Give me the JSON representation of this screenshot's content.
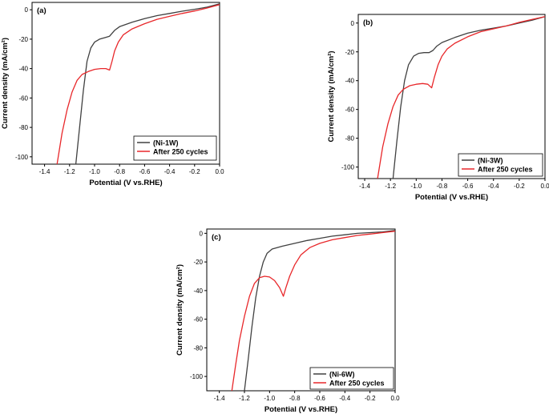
{
  "chart_data": [
    {
      "type": "line",
      "panel": "(a)",
      "xlabel": "Potential (V vs.RHE)",
      "ylabel": "Current density (mA/cm²)",
      "xlim": [
        -1.5,
        0.0
      ],
      "ylim": [
        -105,
        5
      ],
      "xticks": [
        -1.4,
        -1.2,
        -1.0,
        -0.8,
        -0.6,
        -0.4,
        -0.2,
        0.0
      ],
      "xtick_labels": [
        "-1.4",
        "-1.2",
        "-1.0",
        "-0.8",
        "-0.6",
        "-0.4",
        "-0.2",
        "0.0"
      ],
      "yticks": [
        0,
        -20,
        -40,
        -60,
        -80,
        -100
      ],
      "ytick_labels": [
        "0",
        "-20",
        "-40",
        "-60",
        "-80",
        "-100"
      ],
      "legend_position": "bottom-right",
      "series": [
        {
          "name": "(Ni-1W)",
          "color": "#404040",
          "points": [
            [
              -1.15,
              -105
            ],
            [
              -1.12,
              -80
            ],
            [
              -1.09,
              -55
            ],
            [
              -1.06,
              -35
            ],
            [
              -1.03,
              -26
            ],
            [
              -1.0,
              -22
            ],
            [
              -0.96,
              -20
            ],
            [
              -0.92,
              -19
            ],
            [
              -0.88,
              -18
            ],
            [
              -0.84,
              -14
            ],
            [
              -0.8,
              -11.5
            ],
            [
              -0.7,
              -8.5
            ],
            [
              -0.6,
              -6
            ],
            [
              -0.5,
              -4
            ],
            [
              -0.4,
              -2.5
            ],
            [
              -0.3,
              -1
            ],
            [
              -0.2,
              0.3
            ],
            [
              -0.1,
              1.8
            ],
            [
              0.0,
              4
            ]
          ]
        },
        {
          "name": "After 250 cycles",
          "color": "#e8272a",
          "points": [
            [
              -1.3,
              -105
            ],
            [
              -1.26,
              -84
            ],
            [
              -1.22,
              -68
            ],
            [
              -1.18,
              -56
            ],
            [
              -1.14,
              -48
            ],
            [
              -1.1,
              -44
            ],
            [
              -1.05,
              -42
            ],
            [
              -1.0,
              -40.5
            ],
            [
              -0.95,
              -40
            ],
            [
              -0.91,
              -40
            ],
            [
              -0.88,
              -41
            ],
            [
              -0.86,
              -35
            ],
            [
              -0.84,
              -28
            ],
            [
              -0.81,
              -22
            ],
            [
              -0.77,
              -17
            ],
            [
              -0.7,
              -13
            ],
            [
              -0.6,
              -9.5
            ],
            [
              -0.5,
              -6.5
            ],
            [
              -0.4,
              -4.5
            ],
            [
              -0.3,
              -2.5
            ],
            [
              -0.2,
              -0.8
            ],
            [
              -0.1,
              1.2
            ],
            [
              0.0,
              3.5
            ]
          ]
        }
      ]
    },
    {
      "type": "line",
      "panel": "(b)",
      "xlabel": "Potential (V vs.RHE)",
      "ylabel": "Current density (mA/cm²)",
      "xlim": [
        -1.45,
        0.0
      ],
      "ylim": [
        -108,
        6
      ],
      "xticks": [
        -1.4,
        -1.2,
        -1.0,
        -0.8,
        -0.6,
        -0.4,
        -0.2,
        0.0
      ],
      "xtick_labels": [
        "-1.4",
        "-1.2",
        "-1.0",
        "-0.8",
        "-0.6",
        "-0.4",
        "-0.2",
        "0.0"
      ],
      "yticks": [
        0,
        -20,
        -40,
        -60,
        -80,
        -100
      ],
      "ytick_labels": [
        "0",
        "-20",
        "-40",
        "-60",
        "-80",
        "-100"
      ],
      "legend_position": "bottom-right",
      "series": [
        {
          "name": "(Ni-3W)",
          "color": "#404040",
          "points": [
            [
              -1.18,
              -108
            ],
            [
              -1.15,
              -82
            ],
            [
              -1.12,
              -58
            ],
            [
              -1.09,
              -40
            ],
            [
              -1.06,
              -29
            ],
            [
              -1.02,
              -23
            ],
            [
              -0.98,
              -21
            ],
            [
              -0.94,
              -20.5
            ],
            [
              -0.9,
              -20.5
            ],
            [
              -0.87,
              -19
            ],
            [
              -0.84,
              -16
            ],
            [
              -0.8,
              -13.5
            ],
            [
              -0.7,
              -10
            ],
            [
              -0.6,
              -7
            ],
            [
              -0.5,
              -5
            ],
            [
              -0.4,
              -3.5
            ],
            [
              -0.3,
              -2
            ],
            [
              -0.2,
              0
            ],
            [
              -0.1,
              2
            ],
            [
              0.0,
              4.5
            ]
          ]
        },
        {
          "name": "After 250 cycles",
          "color": "#e8272a",
          "points": [
            [
              -1.3,
              -108
            ],
            [
              -1.26,
              -86
            ],
            [
              -1.22,
              -70
            ],
            [
              -1.18,
              -58
            ],
            [
              -1.14,
              -50
            ],
            [
              -1.1,
              -46
            ],
            [
              -1.05,
              -43.5
            ],
            [
              -1.0,
              -42.5
            ],
            [
              -0.95,
              -42
            ],
            [
              -0.91,
              -42.5
            ],
            [
              -0.88,
              -45
            ],
            [
              -0.86,
              -38
            ],
            [
              -0.83,
              -29
            ],
            [
              -0.8,
              -23
            ],
            [
              -0.76,
              -18
            ],
            [
              -0.7,
              -14
            ],
            [
              -0.6,
              -9.5
            ],
            [
              -0.5,
              -6
            ],
            [
              -0.4,
              -4
            ],
            [
              -0.3,
              -2
            ],
            [
              -0.2,
              0.5
            ],
            [
              -0.1,
              2.5
            ],
            [
              0.0,
              4.5
            ]
          ]
        }
      ]
    },
    {
      "type": "line",
      "panel": "(c)",
      "xlabel": "Potential (V vs.RHE)",
      "ylabel": "Current density (mA/cm²)",
      "xlim": [
        -1.5,
        0.0
      ],
      "ylim": [
        -110,
        3
      ],
      "xticks": [
        -1.4,
        -1.2,
        -1.0,
        -0.8,
        -0.6,
        -0.4,
        -0.2,
        0.0
      ],
      "xtick_labels": [
        "-1.4",
        "-1.2",
        "-1.0",
        "-0.8",
        "-0.6",
        "-0.4",
        "-0.2",
        "0.0"
      ],
      "yticks": [
        0,
        -20,
        -40,
        -60,
        -80,
        -100
      ],
      "ytick_labels": [
        "0",
        "-20",
        "-40",
        "-60",
        "-80",
        "-100"
      ],
      "legend_position": "bottom-right",
      "series": [
        {
          "name": "(Ni-6W)",
          "color": "#404040",
          "points": [
            [
              -1.2,
              -110
            ],
            [
              -1.17,
              -88
            ],
            [
              -1.14,
              -65
            ],
            [
              -1.11,
              -45
            ],
            [
              -1.08,
              -30
            ],
            [
              -1.05,
              -20
            ],
            [
              -1.02,
              -14
            ],
            [
              -0.98,
              -11
            ],
            [
              -0.9,
              -9
            ],
            [
              -0.8,
              -7
            ],
            [
              -0.7,
              -5
            ],
            [
              -0.6,
              -3.5
            ],
            [
              -0.5,
              -2
            ],
            [
              -0.4,
              -1
            ],
            [
              -0.3,
              0
            ],
            [
              -0.2,
              0.5
            ],
            [
              -0.1,
              1
            ],
            [
              0.0,
              2
            ]
          ]
        },
        {
          "name": "After 250 cycles",
          "color": "#e8272a",
          "points": [
            [
              -1.3,
              -110
            ],
            [
              -1.27,
              -92
            ],
            [
              -1.24,
              -75
            ],
            [
              -1.2,
              -58
            ],
            [
              -1.16,
              -44
            ],
            [
              -1.12,
              -35
            ],
            [
              -1.08,
              -31
            ],
            [
              -1.04,
              -30
            ],
            [
              -1.0,
              -30.5
            ],
            [
              -0.96,
              -33
            ],
            [
              -0.92,
              -38
            ],
            [
              -0.89,
              -44
            ],
            [
              -0.87,
              -38
            ],
            [
              -0.84,
              -30
            ],
            [
              -0.8,
              -22
            ],
            [
              -0.75,
              -15
            ],
            [
              -0.68,
              -10
            ],
            [
              -0.6,
              -7
            ],
            [
              -0.5,
              -4.5
            ],
            [
              -0.4,
              -3
            ],
            [
              -0.3,
              -1.5
            ],
            [
              -0.2,
              -0.5
            ],
            [
              -0.1,
              0.5
            ],
            [
              0.0,
              1.5
            ]
          ]
        }
      ]
    }
  ]
}
